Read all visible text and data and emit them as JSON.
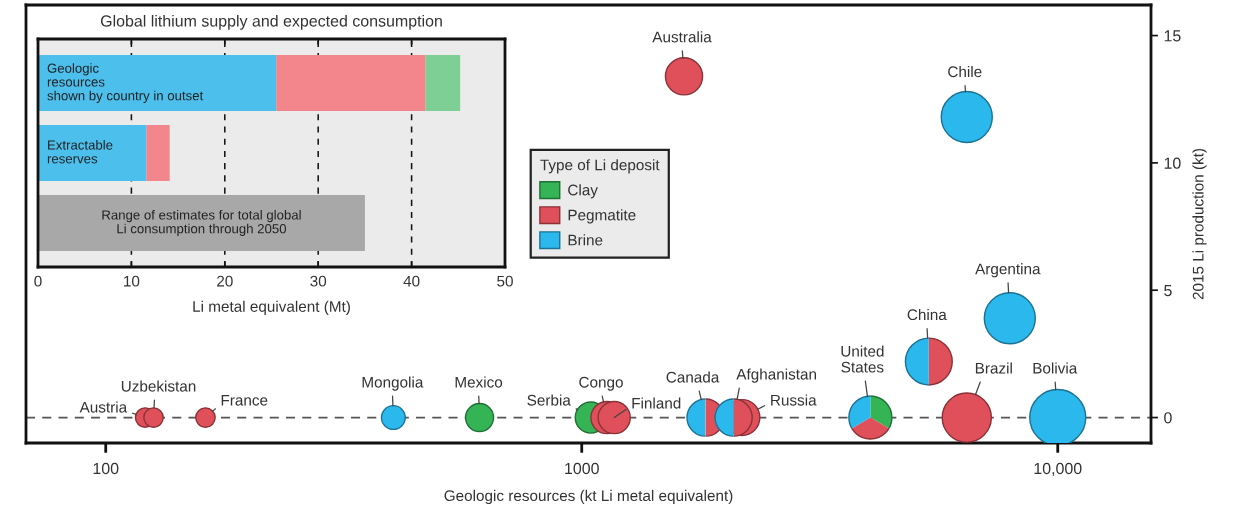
{
  "chart_data": [
    {
      "type": "bubble",
      "xlabel": "Geologic resources (kt Li metal equivalent)",
      "ylabel": "2015 Li production (kt)",
      "legend_title": "Type of Li deposit",
      "log": "x",
      "xlim": [
        68,
        15700
      ],
      "xticks": [
        100,
        1000,
        {
          "value": 10000,
          "label": "10,000"
        }
      ],
      "ylim": [
        -1,
        16.2
      ],
      "yticks": [
        0,
        5,
        10,
        15
      ],
      "legend": "center",
      "ref_lines": [
        {
          "axis": "y",
          "value": 0,
          "line_style": "dashed",
          "color": "#555555"
        }
      ],
      "series": [
        {
          "name": "Clay",
          "color": "#34b455",
          "x": [
            610,
            1045,
            4040
          ],
          "values": [
            0,
            0,
            0
          ],
          "sizes": [
            0.25,
            0.31,
            0.59
          ]
        },
        {
          "name": "Pegmatite",
          "color": "#e0505a",
          "x": [
            121,
            126,
            162,
            1130,
            1170,
            1820,
            2170,
            2085,
            4040,
            5360,
            6440,
            1640
          ],
          "values": [
            0,
            0,
            0,
            0,
            0,
            0,
            0,
            0,
            0,
            2.2,
            0,
            13.4
          ],
          "sizes": [
            0.12,
            0.12,
            0.12,
            0.33,
            0.33,
            0.44,
            0.41,
            0.44,
            0.59,
            0.7,
            0.77,
            0.44
          ]
        },
        {
          "name": "Brine",
          "color": "#2bb8ec",
          "x": [
            402,
            1820,
            2085,
            4040,
            5360,
            6440,
            7930,
            10000
          ],
          "values": [
            0,
            0,
            0,
            0,
            2.2,
            11.8,
            3.9,
            0
          ],
          "sizes": [
            0.18,
            0.44,
            0.44,
            0.59,
            0.7,
            0.83,
            0.83,
            1
          ]
        }
      ],
      "annotations": [
        {
          "text": "Austria",
          "x": 121,
          "y": 0
        },
        {
          "text": "Uzbekistan",
          "x": 126,
          "y": 0
        },
        {
          "text": "France",
          "x": 162,
          "y": 0
        },
        {
          "text": "Mongolia",
          "x": 402,
          "y": 0
        },
        {
          "text": "Mexico",
          "x": 610,
          "y": 0
        },
        {
          "text": "Serbia",
          "x": 1045,
          "y": 0
        },
        {
          "text": "Congo",
          "x": 1130,
          "y": 0
        },
        {
          "text": "Finland",
          "x": 1170,
          "y": 0
        },
        {
          "text": "Canada",
          "x": 1820,
          "y": 0
        },
        {
          "text": "Afghanistan",
          "x": 2085,
          "y": 0
        },
        {
          "text": "Russia",
          "x": 2170,
          "y": 0
        },
        {
          "text": "United\nStates",
          "x": 4040,
          "y": 0
        },
        {
          "text": "China",
          "x": 5360,
          "y": 2.2
        },
        {
          "text": "Brazil",
          "x": 6440,
          "y": 0
        },
        {
          "text": "Bolivia",
          "x": 10000,
          "y": 0
        },
        {
          "text": "Argentina",
          "x": 7930,
          "y": 3.9
        },
        {
          "text": "Chile",
          "x": 6440,
          "y": 11.8
        },
        {
          "text": "Australia",
          "x": 1640,
          "y": 13.4
        }
      ]
    },
    {
      "type": "bar",
      "orientation": "horizontal",
      "stacked": true,
      "title": "Global lithium supply and expected consumption",
      "xlabel": "Li metal equivalent (Mt)",
      "categories": [
        "Geologic\nresources\nshown by country in outset",
        "Extractable\nreserves",
        "Range of estimates for total global\nLi consumption through 2050"
      ],
      "series": [
        {
          "color": "#4cbfec",
          "values": [
            25.5,
            11.6,
            null
          ]
        },
        {
          "color": "#f3868c",
          "values": [
            16.0,
            2.5,
            null
          ]
        },
        {
          "color": "#7dcf95",
          "values": [
            3.7,
            null,
            null
          ]
        },
        {
          "color": "#a8a8a8",
          "values": [
            null,
            null,
            35
          ]
        }
      ],
      "xlim": [
        0,
        50
      ],
      "xticks": [
        0,
        10,
        20,
        30,
        40,
        50
      ],
      "grid": "x"
    }
  ]
}
